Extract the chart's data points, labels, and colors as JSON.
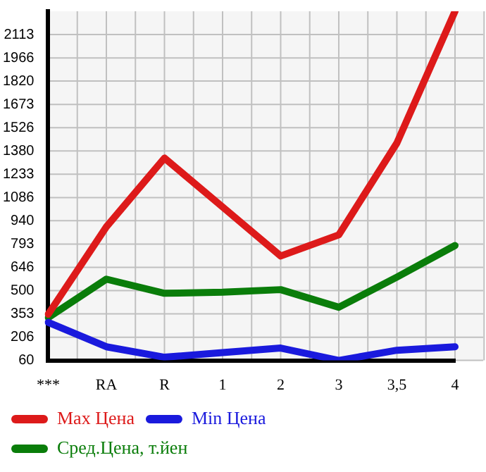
{
  "chart_data": {
    "type": "line",
    "categories": [
      "***",
      "RA",
      "R",
      "1",
      "2",
      "3",
      "3,5",
      "4"
    ],
    "series": [
      {
        "name": "Max Цена",
        "color": "#dd1a1a",
        "values": [
          351,
          902,
          1335,
          1027,
          718,
          851,
          1430,
          2260
        ]
      },
      {
        "name": "Min Цена",
        "color": "#1a1add",
        "values": [
          300,
          146,
          80,
          109,
          138,
          60,
          124,
          146
        ]
      },
      {
        "name": "Сред.Цена, т.йен",
        "color": "#0a7d0a",
        "values": [
          330,
          572,
          483,
          490,
          506,
          395,
          585,
          784
        ]
      }
    ],
    "ylim": [
      60,
      2260
    ],
    "yticks": [
      60,
      206,
      353,
      500,
      646,
      793,
      940,
      1086,
      1233,
      1380,
      1526,
      1673,
      1820,
      1966,
      2113
    ],
    "grid": true,
    "legend": "bottom",
    "marker": "none",
    "line_style": "solid"
  }
}
